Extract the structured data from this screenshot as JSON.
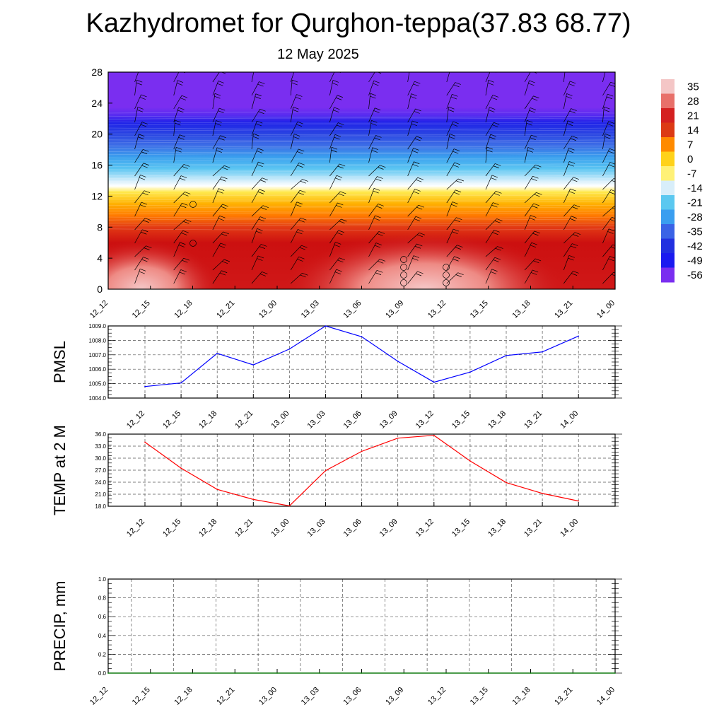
{
  "title": "Kazhydromet for Qurghon-teppa(37.83 68.77)",
  "subtitle": "12 May 2025",
  "time_labels": [
    "12_12",
    "12_15",
    "12_18",
    "12_21",
    "13_00",
    "13_03",
    "13_06",
    "13_09",
    "13_12",
    "13_15",
    "13_18",
    "13_21",
    "14_00"
  ],
  "colorbar": {
    "labels": [
      "35",
      "28",
      "21",
      "14",
      "7",
      "0",
      "-7",
      "-14",
      "-21",
      "-28",
      "-35",
      "-42",
      "-49",
      "-56"
    ]
  },
  "chart_data": [
    {
      "type": "heatmap",
      "name": "temperature-wind-cross-section",
      "x": [
        "12_12",
        "12_15",
        "12_18",
        "12_21",
        "13_00",
        "13_03",
        "13_06",
        "13_09",
        "13_12",
        "13_15",
        "13_18",
        "13_21",
        "14_00"
      ],
      "ylim": [
        0,
        28
      ],
      "yticks": [
        0,
        4,
        8,
        12,
        16,
        20,
        24,
        28
      ],
      "color_scale": [
        35,
        28,
        21,
        14,
        7,
        0,
        -7,
        -14,
        -21,
        -28,
        -35,
        -42,
        -49,
        -56
      ],
      "colors": [
        "#f4c6c6",
        "#e8706a",
        "#d42020",
        "#dc3a14",
        "#ff8a00",
        "#ffd21a",
        "#fff176",
        "#d8eefa",
        "#5bc8f0",
        "#3a9ef0",
        "#3a63e6",
        "#2130e0",
        "#1a1af0",
        "#7a2ef0"
      ],
      "grid": false
    },
    {
      "type": "line",
      "name": "pmsl",
      "ylabel": "PMSL",
      "categories": [
        "12_12",
        "12_15",
        "12_18",
        "12_21",
        "13_00",
        "13_03",
        "13_06",
        "13_09",
        "13_12",
        "13_15",
        "13_18",
        "13_21",
        "14_00"
      ],
      "values": [
        1004.8,
        1005.05,
        1007.1,
        1006.3,
        1007.4,
        1009.0,
        1008.25,
        1006.55,
        1005.1,
        1005.8,
        1006.95,
        1007.2,
        1008.3
      ],
      "ylim": [
        1004.0,
        1009.0
      ],
      "yticks": [
        "1004.0",
        "1005.0",
        "1006.0",
        "1007.0",
        "1008.0",
        "1009.0"
      ],
      "color": "#0000ff",
      "grid": true
    },
    {
      "type": "line",
      "name": "temp-2m",
      "ylabel": "TEMP at 2 M",
      "categories": [
        "12_12",
        "12_15",
        "12_18",
        "12_21",
        "13_00",
        "13_03",
        "13_06",
        "13_09",
        "13_12",
        "13_15",
        "13_18",
        "13_21",
        "14_00"
      ],
      "values": [
        34.0,
        27.5,
        22.2,
        19.7,
        18.1,
        26.9,
        31.7,
        35.0,
        35.7,
        29.3,
        23.9,
        21.2,
        19.3
      ],
      "ylim": [
        18.0,
        36.0
      ],
      "yticks": [
        "18.0",
        "21.0",
        "24.0",
        "27.0",
        "30.0",
        "33.0",
        "36.0"
      ],
      "color": "#ff0000",
      "grid": true
    },
    {
      "type": "line",
      "name": "precip",
      "ylabel": "PRECIP, mm",
      "categories": [
        "12_12",
        "12_15",
        "12_18",
        "12_21",
        "13_00",
        "13_03",
        "13_06",
        "13_09",
        "13_12",
        "13_15",
        "13_18",
        "13_21",
        "14_00"
      ],
      "values": [
        0,
        0,
        0,
        0,
        0,
        0,
        0,
        0,
        0,
        0,
        0,
        0,
        0
      ],
      "ylim": [
        0.0,
        1.0
      ],
      "yticks": [
        "0.0",
        "0.2",
        "0.4",
        "0.6",
        "0.8",
        "1.0"
      ],
      "color": "#008000",
      "grid": true
    }
  ]
}
